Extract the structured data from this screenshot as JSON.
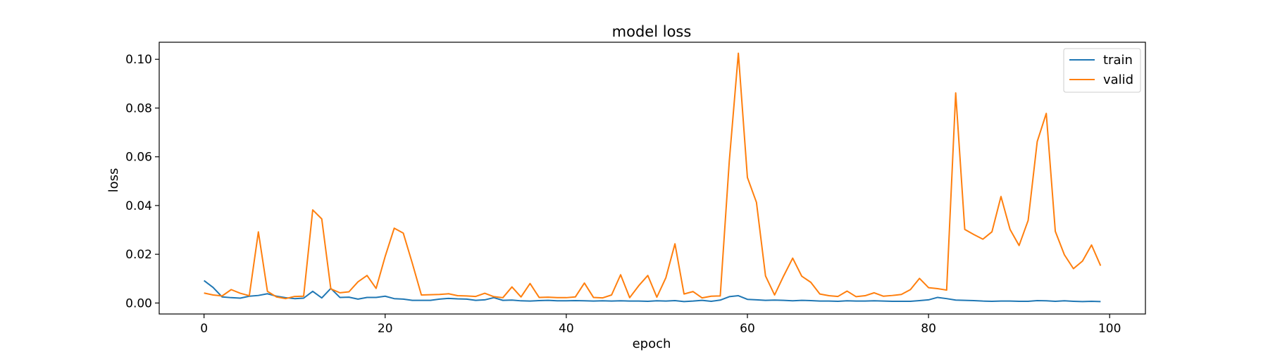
{
  "chart_data": {
    "type": "line",
    "title": "model loss",
    "xlabel": "epoch",
    "ylabel": "loss",
    "xlim": [
      -4.95,
      103.95
    ],
    "ylim": [
      -0.0045,
      0.107
    ],
    "xticks": [
      0,
      20,
      40,
      60,
      80,
      100
    ],
    "yticks": [
      0.0,
      0.02,
      0.04,
      0.06,
      0.08,
      0.1
    ],
    "ytick_labels": [
      "0.00",
      "0.02",
      "0.04",
      "0.06",
      "0.08",
      "0.10"
    ],
    "grid": false,
    "legend_position": "top-right",
    "x": [
      0,
      1,
      2,
      3,
      4,
      5,
      6,
      7,
      8,
      9,
      10,
      11,
      12,
      13,
      14,
      15,
      16,
      17,
      18,
      19,
      20,
      21,
      22,
      23,
      24,
      25,
      26,
      27,
      28,
      29,
      30,
      31,
      32,
      33,
      34,
      35,
      36,
      37,
      38,
      39,
      40,
      41,
      42,
      43,
      44,
      45,
      46,
      47,
      48,
      49,
      50,
      51,
      52,
      53,
      54,
      55,
      56,
      57,
      58,
      59,
      60,
      61,
      62,
      63,
      64,
      65,
      66,
      67,
      68,
      69,
      70,
      71,
      72,
      73,
      74,
      75,
      76,
      77,
      78,
      79,
      80,
      81,
      82,
      83,
      84,
      85,
      86,
      87,
      88,
      89,
      90,
      91,
      92,
      93,
      94,
      95,
      96,
      97,
      98,
      99
    ],
    "series": [
      {
        "name": "train",
        "color": "#1f77b4",
        "values": [
          0.0092,
          0.0064,
          0.0025,
          0.0022,
          0.002,
          0.0028,
          0.0031,
          0.0038,
          0.0028,
          0.0022,
          0.0018,
          0.002,
          0.0048,
          0.0021,
          0.006,
          0.0023,
          0.0024,
          0.0016,
          0.0023,
          0.0023,
          0.0028,
          0.0018,
          0.0016,
          0.0011,
          0.0011,
          0.0011,
          0.0016,
          0.0019,
          0.0017,
          0.0016,
          0.0011,
          0.0013,
          0.0022,
          0.0011,
          0.0012,
          0.0009,
          0.0008,
          0.001,
          0.0011,
          0.0009,
          0.0009,
          0.001,
          0.0009,
          0.0008,
          0.0009,
          0.0008,
          0.0009,
          0.0008,
          0.0008,
          0.0007,
          0.0009,
          0.0008,
          0.001,
          0.0006,
          0.0008,
          0.0011,
          0.0007,
          0.0012,
          0.0026,
          0.003,
          0.0015,
          0.0013,
          0.0011,
          0.0012,
          0.0011,
          0.0009,
          0.0011,
          0.001,
          0.0008,
          0.0008,
          0.0007,
          0.0009,
          0.0008,
          0.0008,
          0.0009,
          0.0008,
          0.0007,
          0.0007,
          0.0007,
          0.001,
          0.0013,
          0.0023,
          0.0018,
          0.0012,
          0.0011,
          0.001,
          0.0008,
          0.0007,
          0.0008,
          0.0008,
          0.0007,
          0.0007,
          0.001,
          0.0009,
          0.0007,
          0.0009,
          0.0007,
          0.0006,
          0.0007,
          0.0006
        ]
      },
      {
        "name": "valid",
        "color": "#ff7f0e",
        "values": [
          0.0041,
          0.0033,
          0.0029,
          0.0055,
          0.004,
          0.003,
          0.0292,
          0.0048,
          0.0025,
          0.0018,
          0.0027,
          0.0028,
          0.0382,
          0.0345,
          0.0058,
          0.0042,
          0.0046,
          0.0087,
          0.0113,
          0.006,
          0.0191,
          0.0307,
          0.0287,
          0.0163,
          0.0033,
          0.0034,
          0.0035,
          0.0038,
          0.003,
          0.0029,
          0.0027,
          0.004,
          0.0026,
          0.0022,
          0.0066,
          0.0025,
          0.008,
          0.0023,
          0.0024,
          0.0022,
          0.0022,
          0.0025,
          0.0082,
          0.0023,
          0.0021,
          0.0033,
          0.0116,
          0.0022,
          0.0071,
          0.0113,
          0.0024,
          0.0104,
          0.0243,
          0.0037,
          0.0047,
          0.0021,
          0.0028,
          0.0029,
          0.0582,
          0.1025,
          0.0515,
          0.0413,
          0.0111,
          0.0033,
          0.0111,
          0.0184,
          0.011,
          0.0085,
          0.0037,
          0.003,
          0.0027,
          0.0049,
          0.0026,
          0.003,
          0.0042,
          0.0028,
          0.0031,
          0.0035,
          0.0055,
          0.0101,
          0.0063,
          0.0059,
          0.0053,
          0.0862,
          0.0302,
          0.0281,
          0.0262,
          0.0292,
          0.0437,
          0.0302,
          0.0236,
          0.0339,
          0.0662,
          0.0778,
          0.0294,
          0.0198,
          0.0141,
          0.0172,
          0.0238,
          0.0153
        ]
      }
    ]
  }
}
